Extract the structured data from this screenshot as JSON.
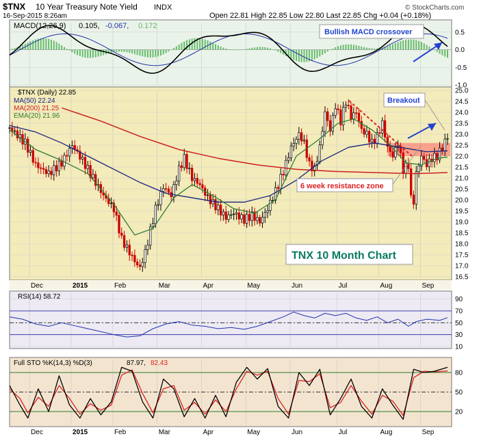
{
  "header": {
    "symbol": "$TNX",
    "name": "10 Year Treasury Note Yield",
    "exchange": "INDX",
    "date": "16-Sep-2015 8:26am",
    "quote": "Open 22.81  High 22.85  Low 22.80  Last 22.85  Chg +0.04 (+0.18%)",
    "watermark": "© StockCharts.com"
  },
  "colors": {
    "price_up": "#000000",
    "price_down": "#cc0000",
    "ma50": "#1a237e",
    "ma200": "#cc1f1f",
    "ema20": "#2e7d32",
    "macd": "#000000",
    "signal": "#2233aa",
    "histogram": "#66bb6a",
    "rsi": "#2233aa",
    "sto_k": "#000000",
    "sto_d": "#dd2222",
    "annotation": "#2244cc",
    "resistance": "#ff6666"
  },
  "chart_data": [
    {
      "type": "line",
      "panel": "macd",
      "label": "MACD(12,26,9) 0.105, -0.067, 0.172",
      "label_parts": [
        "MACD(12,26,9)",
        "0.105,",
        "-0.067,",
        "0.172"
      ],
      "ylim": [
        -1.0,
        0.75
      ],
      "yticks": [
        -1.0,
        -0.5,
        0.0,
        0.5
      ],
      "annotation": "Bullish MACD crossover"
    },
    {
      "type": "line",
      "panel": "price",
      "legend": [
        {
          "text": "$TNX (Daily) 22.85",
          "color": "#000000"
        },
        {
          "text": "MA(50) 22.24",
          "color": "#1a237e"
        },
        {
          "text": "MA(200) 21.25",
          "color": "#cc1f1f"
        },
        {
          "text": "EMA(20) 21.96",
          "color": "#2e7d32"
        }
      ],
      "ylim": [
        16.5,
        25.0
      ],
      "yticks": [
        16.5,
        17.0,
        17.5,
        18.0,
        18.5,
        19.0,
        19.5,
        20.0,
        20.5,
        21.0,
        21.5,
        22.0,
        22.5,
        23.0,
        23.5,
        24.0,
        24.5,
        25.0
      ],
      "x_labels": [
        "Dec",
        "2015",
        "Feb",
        "Mar",
        "Apr",
        "May",
        "Jun",
        "Jul",
        "Aug",
        "Sep"
      ],
      "price_path": [
        [
          0,
          23.3
        ],
        [
          12,
          22.6
        ],
        [
          20,
          21.6
        ],
        [
          30,
          21.2
        ],
        [
          40,
          21.7
        ],
        [
          48,
          22.5
        ],
        [
          56,
          21.8
        ],
        [
          64,
          21.0
        ],
        [
          72,
          20.2
        ],
        [
          80,
          19.6
        ],
        [
          86,
          18.2
        ],
        [
          92,
          17.6
        ],
        [
          96,
          17.2
        ],
        [
          100,
          16.9
        ],
        [
          104,
          17.6
        ],
        [
          108,
          18.6
        ],
        [
          112,
          19.6
        ],
        [
          118,
          20.6
        ],
        [
          124,
          20.2
        ],
        [
          130,
          21.4
        ],
        [
          134,
          21.9
        ],
        [
          140,
          21.0
        ],
        [
          146,
          20.7
        ],
        [
          152,
          20.1
        ],
        [
          160,
          19.6
        ],
        [
          166,
          19.2
        ],
        [
          172,
          19.4
        ],
        [
          180,
          19.1
        ],
        [
          186,
          19.3
        ],
        [
          192,
          19.0
        ],
        [
          198,
          19.6
        ],
        [
          204,
          20.4
        ],
        [
          210,
          21.3
        ],
        [
          216,
          22.4
        ],
        [
          222,
          23.0
        ],
        [
          226,
          22.6
        ],
        [
          230,
          21.6
        ],
        [
          234,
          21.4
        ],
        [
          238,
          22.4
        ],
        [
          242,
          24.0
        ],
        [
          246,
          23.2
        ],
        [
          250,
          24.3
        ],
        [
          254,
          23.6
        ],
        [
          258,
          24.5
        ],
        [
          262,
          23.8
        ],
        [
          266,
          24.0
        ],
        [
          270,
          23.2
        ],
        [
          274,
          23.0
        ],
        [
          278,
          22.6
        ],
        [
          282,
          22.9
        ],
        [
          286,
          23.5
        ],
        [
          290,
          22.4
        ],
        [
          294,
          22.0
        ],
        [
          298,
          22.6
        ],
        [
          302,
          21.4
        ],
        [
          306,
          21.6
        ],
        [
          309,
          19.3
        ],
        [
          312,
          21.2
        ],
        [
          316,
          22.0
        ],
        [
          320,
          21.6
        ],
        [
          324,
          21.9
        ],
        [
          328,
          22.0
        ],
        [
          332,
          22.4
        ],
        [
          336,
          22.9
        ]
      ],
      "ma50_path": [
        [
          0,
          23.4
        ],
        [
          20,
          23.1
        ],
        [
          40,
          22.6
        ],
        [
          60,
          22.0
        ],
        [
          80,
          21.4
        ],
        [
          100,
          20.8
        ],
        [
          120,
          20.3
        ],
        [
          140,
          20.1
        ],
        [
          160,
          19.9
        ],
        [
          180,
          19.9
        ],
        [
          200,
          20.2
        ],
        [
          220,
          20.9
        ],
        [
          240,
          21.8
        ],
        [
          260,
          22.4
        ],
        [
          280,
          22.6
        ],
        [
          300,
          22.4
        ],
        [
          320,
          22.2
        ],
        [
          336,
          22.24
        ]
      ],
      "ma200_path": [
        [
          40,
          24.2
        ],
        [
          70,
          23.6
        ],
        [
          100,
          22.9
        ],
        [
          130,
          22.3
        ],
        [
          160,
          21.9
        ],
        [
          190,
          21.6
        ],
        [
          220,
          21.4
        ],
        [
          250,
          21.3
        ],
        [
          280,
          21.25
        ],
        [
          310,
          21.2
        ],
        [
          336,
          21.25
        ]
      ],
      "ema20_path": [
        [
          0,
          23.2
        ],
        [
          20,
          22.3
        ],
        [
          40,
          21.8
        ],
        [
          60,
          21.2
        ],
        [
          80,
          19.8
        ],
        [
          96,
          18.4
        ],
        [
          110,
          18.7
        ],
        [
          126,
          20.1
        ],
        [
          140,
          20.7
        ],
        [
          156,
          20.2
        ],
        [
          172,
          19.6
        ],
        [
          188,
          19.4
        ],
        [
          204,
          20.0
        ],
        [
          220,
          22.0
        ],
        [
          236,
          22.7
        ],
        [
          252,
          23.5
        ],
        [
          264,
          23.7
        ],
        [
          278,
          23.2
        ],
        [
          292,
          22.5
        ],
        [
          304,
          21.7
        ],
        [
          316,
          21.6
        ],
        [
          328,
          21.9
        ],
        [
          336,
          21.96
        ]
      ],
      "resistance_zone": [
        22.0,
        22.6
      ],
      "annotations": [
        "Breakout",
        "6 week resistance zone",
        "TNX 10 Month Chart"
      ]
    },
    {
      "type": "line",
      "panel": "rsi",
      "label": "RSI(14) 58.72",
      "ylim": [
        10,
        100
      ],
      "yticks": [
        10,
        30,
        50,
        70,
        90
      ],
      "reference_lines": [
        30,
        50,
        70
      ],
      "rsi_path": [
        [
          0,
          60
        ],
        [
          10,
          56
        ],
        [
          20,
          48
        ],
        [
          30,
          44
        ],
        [
          40,
          50
        ],
        [
          50,
          45
        ],
        [
          60,
          40
        ],
        [
          70,
          35
        ],
        [
          80,
          30
        ],
        [
          90,
          26
        ],
        [
          100,
          28
        ],
        [
          110,
          40
        ],
        [
          120,
          48
        ],
        [
          130,
          52
        ],
        [
          140,
          46
        ],
        [
          150,
          44
        ],
        [
          160,
          40
        ],
        [
          170,
          42
        ],
        [
          180,
          39
        ],
        [
          190,
          44
        ],
        [
          200,
          52
        ],
        [
          210,
          60
        ],
        [
          218,
          68
        ],
        [
          226,
          62
        ],
        [
          234,
          58
        ],
        [
          242,
          66
        ],
        [
          250,
          62
        ],
        [
          258,
          66
        ],
        [
          266,
          58
        ],
        [
          274,
          54
        ],
        [
          282,
          60
        ],
        [
          290,
          50
        ],
        [
          298,
          56
        ],
        [
          306,
          44
        ],
        [
          312,
          52
        ],
        [
          320,
          56
        ],
        [
          330,
          54
        ],
        [
          336,
          58.72
        ]
      ]
    },
    {
      "type": "line",
      "panel": "stochastic",
      "label": "Full STO %K(14,3) %D(3) 87.97, 82.43",
      "label_parts": [
        "Full STO %K(14,3) %D(3)",
        "87.97,",
        "82.43"
      ],
      "ylim": [
        0,
        100
      ],
      "yticks": [
        20,
        50,
        80
      ],
      "reference_lines": [
        20,
        50,
        80
      ],
      "k_path": [
        [
          0,
          60
        ],
        [
          8,
          30
        ],
        [
          14,
          10
        ],
        [
          22,
          55
        ],
        [
          30,
          20
        ],
        [
          38,
          75
        ],
        [
          46,
          30
        ],
        [
          54,
          10
        ],
        [
          62,
          40
        ],
        [
          70,
          15
        ],
        [
          78,
          35
        ],
        [
          86,
          88
        ],
        [
          94,
          82
        ],
        [
          102,
          35
        ],
        [
          110,
          10
        ],
        [
          118,
          70
        ],
        [
          126,
          55
        ],
        [
          134,
          12
        ],
        [
          142,
          40
        ],
        [
          150,
          10
        ],
        [
          158,
          45
        ],
        [
          166,
          12
        ],
        [
          174,
          65
        ],
        [
          182,
          88
        ],
        [
          190,
          70
        ],
        [
          198,
          86
        ],
        [
          206,
          28
        ],
        [
          214,
          10
        ],
        [
          222,
          80
        ],
        [
          230,
          60
        ],
        [
          238,
          85
        ],
        [
          246,
          15
        ],
        [
          254,
          40
        ],
        [
          262,
          70
        ],
        [
          270,
          28
        ],
        [
          278,
          10
        ],
        [
          286,
          55
        ],
        [
          294,
          30
        ],
        [
          302,
          8
        ],
        [
          310,
          85
        ],
        [
          318,
          80
        ],
        [
          326,
          82
        ],
        [
          336,
          87.97
        ]
      ],
      "d_path": [
        [
          0,
          55
        ],
        [
          8,
          40
        ],
        [
          14,
          18
        ],
        [
          22,
          42
        ],
        [
          30,
          28
        ],
        [
          38,
          60
        ],
        [
          46,
          40
        ],
        [
          54,
          16
        ],
        [
          62,
          32
        ],
        [
          70,
          22
        ],
        [
          78,
          30
        ],
        [
          86,
          76
        ],
        [
          94,
          84
        ],
        [
          102,
          48
        ],
        [
          110,
          18
        ],
        [
          118,
          55
        ],
        [
          126,
          60
        ],
        [
          134,
          22
        ],
        [
          142,
          34
        ],
        [
          150,
          16
        ],
        [
          158,
          38
        ],
        [
          166,
          20
        ],
        [
          174,
          55
        ],
        [
          182,
          82
        ],
        [
          190,
          76
        ],
        [
          198,
          82
        ],
        [
          206,
          40
        ],
        [
          214,
          16
        ],
        [
          222,
          68
        ],
        [
          230,
          66
        ],
        [
          238,
          78
        ],
        [
          246,
          26
        ],
        [
          254,
          34
        ],
        [
          262,
          60
        ],
        [
          270,
          36
        ],
        [
          278,
          16
        ],
        [
          286,
          45
        ],
        [
          294,
          36
        ],
        [
          302,
          14
        ],
        [
          310,
          72
        ],
        [
          318,
          82
        ],
        [
          326,
          81
        ],
        [
          336,
          82.43
        ]
      ]
    }
  ]
}
